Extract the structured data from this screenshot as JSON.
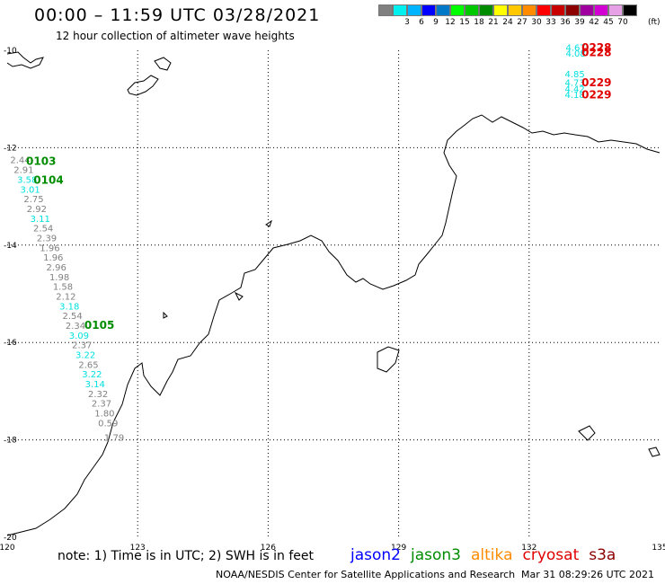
{
  "header": {
    "title": "00:00 – 11:59 UTC 03/28/2021",
    "subtitle": "12 hour collection of altimeter wave heights"
  },
  "legend": {
    "levels": [
      {
        "label": "",
        "color": "#808080"
      },
      {
        "label": "3",
        "color": "#00f0f0"
      },
      {
        "label": "6",
        "color": "#00b4ff"
      },
      {
        "label": "9",
        "color": "#0000ff"
      },
      {
        "label": "12",
        "color": "#0078c8"
      },
      {
        "label": "15",
        "color": "#00ff00"
      },
      {
        "label": "18",
        "color": "#00c800"
      },
      {
        "label": "21",
        "color": "#008c00"
      },
      {
        "label": "24",
        "color": "#ffff00"
      },
      {
        "label": "27",
        "color": "#ffc800"
      },
      {
        "label": "30",
        "color": "#ff8c00"
      },
      {
        "label": "33",
        "color": "#ff0000"
      },
      {
        "label": "36",
        "color": "#c80000"
      },
      {
        "label": "39",
        "color": "#8c0000"
      },
      {
        "label": "42",
        "color": "#a000a0"
      },
      {
        "label": "45",
        "color": "#d200d2"
      },
      {
        "label": "70",
        "color": "#e6a0e6"
      },
      {
        "label": "",
        "color": "#000000"
      }
    ],
    "unit": "(ft)"
  },
  "map": {
    "lon_min": 120,
    "lon_max": 135,
    "lat_min": -20,
    "lat_max": -10,
    "lon_ticks": [
      "120",
      "123",
      "126",
      "129",
      "132",
      "135"
    ],
    "lon_tick_values": [
      120,
      123,
      126,
      129,
      132,
      135
    ],
    "lat_ticks": [
      "-10",
      "-12",
      "-14",
      "-16",
      "-18",
      "-20"
    ],
    "lat_tick_values": [
      -10,
      -12,
      -14,
      -16,
      -18,
      -20
    ]
  },
  "colors": {
    "gray": "#808080",
    "cyan": "#00e0e0",
    "green": "#008c00",
    "red": "#e00000"
  },
  "chart_data": {
    "type": "scatter",
    "west_track": [
      {
        "lon": 120.3,
        "lat": -12.32,
        "swh": "2.44",
        "c": "gray"
      },
      {
        "lon": 120.38,
        "lat": -12.52,
        "swh": "2.91",
        "c": "gray"
      },
      {
        "lon": 120.46,
        "lat": -12.72,
        "swh": "3.58",
        "c": "cyan"
      },
      {
        "lon": 120.53,
        "lat": -12.92,
        "swh": "3.01",
        "c": "cyan"
      },
      {
        "lon": 120.61,
        "lat": -13.12,
        "swh": "2.75",
        "c": "gray"
      },
      {
        "lon": 120.68,
        "lat": -13.32,
        "swh": "2.92",
        "c": "gray"
      },
      {
        "lon": 120.76,
        "lat": -13.52,
        "swh": "3.11",
        "c": "cyan"
      },
      {
        "lon": 120.83,
        "lat": -13.72,
        "swh": "2.54",
        "c": "gray"
      },
      {
        "lon": 120.91,
        "lat": -13.92,
        "swh": "2.39",
        "c": "gray"
      },
      {
        "lon": 120.98,
        "lat": -14.12,
        "swh": "1.96",
        "c": "gray"
      },
      {
        "lon": 121.06,
        "lat": -14.32,
        "swh": "1.96",
        "c": "gray"
      },
      {
        "lon": 121.13,
        "lat": -14.52,
        "swh": "2.96",
        "c": "gray"
      },
      {
        "lon": 121.2,
        "lat": -14.72,
        "swh": "1.98",
        "c": "gray"
      },
      {
        "lon": 121.28,
        "lat": -14.92,
        "swh": "1.58",
        "c": "gray"
      },
      {
        "lon": 121.35,
        "lat": -15.12,
        "swh": "2.12",
        "c": "gray"
      },
      {
        "lon": 121.43,
        "lat": -15.32,
        "swh": "3.18",
        "c": "cyan"
      },
      {
        "lon": 121.5,
        "lat": -15.52,
        "swh": "2.54",
        "c": "gray"
      },
      {
        "lon": 121.57,
        "lat": -15.72,
        "swh": "2.34",
        "c": "gray"
      },
      {
        "lon": 121.65,
        "lat": -15.92,
        "swh": "3.09",
        "c": "cyan"
      },
      {
        "lon": 121.72,
        "lat": -16.12,
        "swh": "2.37",
        "c": "gray"
      },
      {
        "lon": 121.8,
        "lat": -16.32,
        "swh": "3.22",
        "c": "cyan"
      },
      {
        "lon": 121.87,
        "lat": -16.52,
        "swh": "2.65",
        "c": "gray"
      },
      {
        "lon": 121.95,
        "lat": -16.72,
        "swh": "3.22",
        "c": "cyan"
      },
      {
        "lon": 122.02,
        "lat": -16.92,
        "swh": "3.14",
        "c": "cyan"
      },
      {
        "lon": 122.09,
        "lat": -17.12,
        "swh": "2.32",
        "c": "gray"
      },
      {
        "lon": 122.17,
        "lat": -17.32,
        "swh": "2.37",
        "c": "gray"
      },
      {
        "lon": 122.24,
        "lat": -17.52,
        "swh": "1.80",
        "c": "gray"
      },
      {
        "lon": 122.32,
        "lat": -17.72,
        "swh": "0.59",
        "c": "gray"
      },
      {
        "lon": 122.46,
        "lat": -18.02,
        "swh": "1.79",
        "c": "gray"
      }
    ],
    "west_times": [
      {
        "lon": 120.78,
        "lat": -12.35,
        "label": "0103",
        "c": "green"
      },
      {
        "lon": 120.95,
        "lat": -12.74,
        "label": "0104",
        "c": "green"
      },
      {
        "lon": 122.12,
        "lat": -15.72,
        "label": "0105",
        "c": "green"
      }
    ],
    "east_track": [
      {
        "lon": 133.07,
        "lat": -10.01,
        "swh": "4.67",
        "c": "cyan"
      },
      {
        "lon": 133.07,
        "lat": -10.13,
        "swh": "4.08",
        "c": "cyan"
      },
      {
        "lon": 133.05,
        "lat": -10.55,
        "swh": "4.85",
        "c": "cyan"
      },
      {
        "lon": 133.05,
        "lat": -10.73,
        "swh": "4.73",
        "c": "cyan"
      },
      {
        "lon": 133.05,
        "lat": -10.86,
        "swh": "4.42",
        "c": "cyan"
      },
      {
        "lon": 133.05,
        "lat": -10.98,
        "swh": "4.18",
        "c": "cyan"
      }
    ],
    "east_times": [
      {
        "lon": 133.55,
        "lat": -10.02,
        "label": "0228",
        "c": "red"
      },
      {
        "lon": 133.55,
        "lat": -10.12,
        "label": "0228",
        "c": "red"
      },
      {
        "lon": 133.55,
        "lat": -10.74,
        "label": "0229",
        "c": "red"
      },
      {
        "lon": 133.55,
        "lat": -10.99,
        "label": "0229",
        "c": "red"
      }
    ]
  },
  "footer": {
    "note": "note: 1) Time is in UTC; 2) SWH is in feet",
    "missions": [
      {
        "name": "jason2",
        "color": "#0000ff"
      },
      {
        "name": "jason3",
        "color": "#008c00"
      },
      {
        "name": "altika",
        "color": "#ff8c00"
      },
      {
        "name": "cryosat",
        "color": "#e00000"
      },
      {
        "name": "s3a",
        "color": "#8c0000"
      }
    ],
    "credit": "NOAA/NESDIS Center for Satellite Applications and Research",
    "timestamp": "Mar 31 08:29:26 UTC 2021"
  }
}
